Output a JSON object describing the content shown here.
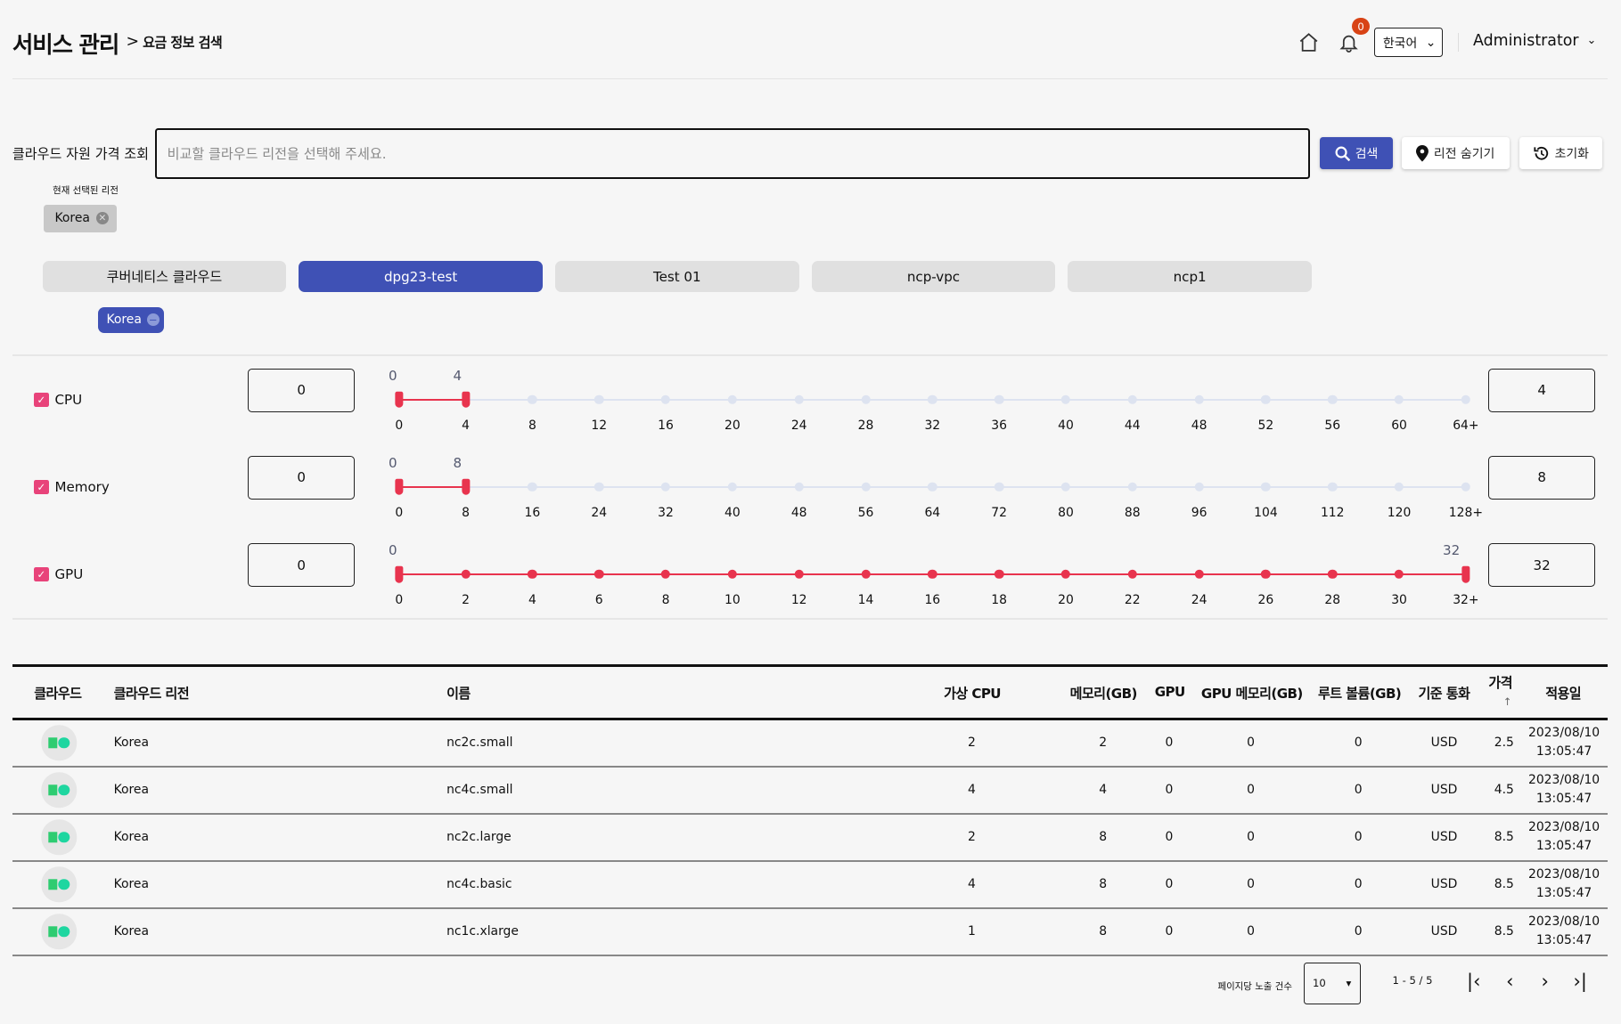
{
  "header": {
    "title": "서비스 관리",
    "breadcrumb_separator": ">",
    "breadcrumb": "요금 정보 검색",
    "notification_count": "0",
    "language": "한국어",
    "user": "Administrator"
  },
  "search": {
    "label": "클라우드 자원 가격 조회",
    "placeholder": "비교할 클라우드 리전을 선택해 주세요.",
    "search_button": "검색",
    "hide_regions_button": "리전 숨기기",
    "reset_button": "초기화",
    "selected_regions_label": "현재 선택된 리전",
    "selected_regions": [
      "Korea"
    ]
  },
  "cloud_tabs": [
    {
      "label": "쿠버네티스 클라우드",
      "active": false
    },
    {
      "label": "dpg23-test",
      "active": true
    },
    {
      "label": "Test 01",
      "active": false
    },
    {
      "label": "ncp-vpc",
      "active": false
    },
    {
      "label": "ncp1",
      "active": false
    }
  ],
  "tab_region_chip": "Korea",
  "filters": [
    {
      "label": "CPU",
      "checked": true,
      "min": "0",
      "max": "4",
      "ticks": [
        "0",
        "4",
        "8",
        "12",
        "16",
        "20",
        "24",
        "28",
        "32",
        "36",
        "40",
        "44",
        "48",
        "52",
        "56",
        "60",
        "64+"
      ],
      "min_index": 0,
      "max_index": 1
    },
    {
      "label": "Memory",
      "checked": true,
      "min": "0",
      "max": "8",
      "ticks": [
        "0",
        "8",
        "16",
        "24",
        "32",
        "40",
        "48",
        "56",
        "64",
        "72",
        "80",
        "88",
        "96",
        "104",
        "112",
        "120",
        "128+"
      ],
      "min_index": 0,
      "max_index": 1
    },
    {
      "label": "GPU",
      "checked": true,
      "min": "0",
      "max": "32",
      "ticks": [
        "0",
        "2",
        "4",
        "6",
        "8",
        "10",
        "12",
        "14",
        "16",
        "18",
        "20",
        "22",
        "24",
        "26",
        "28",
        "30",
        "32+"
      ],
      "min_index": 0,
      "max_index": 16
    }
  ],
  "colors": {
    "accent": "#3f51b5",
    "slider": "#e8344e",
    "checkbox": "#e8437a"
  },
  "table": {
    "headers": {
      "cloud": "클라우드",
      "region": "클라우드 리전",
      "name": "이름",
      "vcpu": "가상 CPU",
      "memory": "메모리(GB)",
      "gpu": "GPU",
      "gpu_memory": "GPU 메모리(GB)",
      "root_volume": "루트 볼륨(GB)",
      "currency": "기준 통화",
      "price": "가격",
      "price_sort": "↑",
      "applied_date": "적용일"
    },
    "rows": [
      {
        "region": "Korea",
        "name": "nc2c.small",
        "vcpu": "2",
        "memory": "2",
        "gpu": "0",
        "gpu_memory": "0",
        "root_volume": "0",
        "currency": "USD",
        "price": "2.5",
        "date": "2023/08/10",
        "time": "13:05:47"
      },
      {
        "region": "Korea",
        "name": "nc4c.small",
        "vcpu": "4",
        "memory": "4",
        "gpu": "0",
        "gpu_memory": "0",
        "root_volume": "0",
        "currency": "USD",
        "price": "4.5",
        "date": "2023/08/10",
        "time": "13:05:47"
      },
      {
        "region": "Korea",
        "name": "nc2c.large",
        "vcpu": "2",
        "memory": "8",
        "gpu": "0",
        "gpu_memory": "0",
        "root_volume": "0",
        "currency": "USD",
        "price": "8.5",
        "date": "2023/08/10",
        "time": "13:05:47"
      },
      {
        "region": "Korea",
        "name": "nc4c.basic",
        "vcpu": "4",
        "memory": "8",
        "gpu": "0",
        "gpu_memory": "0",
        "root_volume": "0",
        "currency": "USD",
        "price": "8.5",
        "date": "2023/08/10",
        "time": "13:05:47"
      },
      {
        "region": "Korea",
        "name": "nc1c.xlarge",
        "vcpu": "1",
        "memory": "8",
        "gpu": "0",
        "gpu_memory": "0",
        "root_volume": "0",
        "currency": "USD",
        "price": "8.5",
        "date": "2023/08/10",
        "time": "13:05:47"
      }
    ]
  },
  "pagination": {
    "rows_per_page_label": "페이지당 노출 건수",
    "rows_per_page": "10",
    "range": "1 - 5 / 5"
  }
}
